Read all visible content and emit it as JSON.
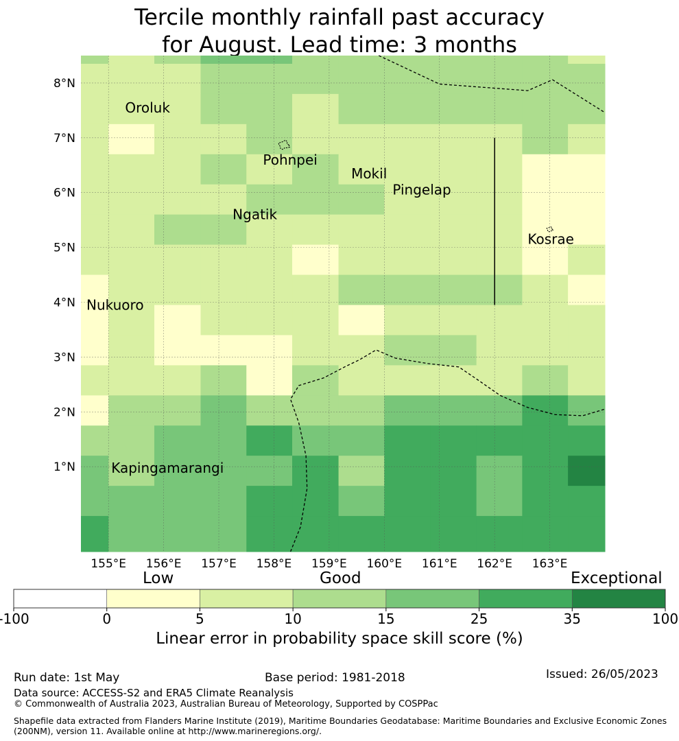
{
  "title": {
    "line1": "Tercile monthly rainfall past accuracy",
    "line2": "for August. Lead time: 3 months"
  },
  "map": {
    "lon_range": [
      154.5,
      164.0
    ],
    "lat_range": [
      -0.55,
      8.5
    ],
    "lon_ticks": [
      "155°E",
      "156°E",
      "157°E",
      "158°E",
      "159°E",
      "160°E",
      "161°E",
      "162°E",
      "163°E"
    ],
    "lat_ticks": [
      "1°N",
      "2°N",
      "3°N",
      "4°N",
      "5°N",
      "6°N",
      "7°N",
      "8°N"
    ],
    "grid": true,
    "place_labels": [
      "Oroluk",
      "Pohnpei",
      "Mokil",
      "Pingelap",
      "Ngatik",
      "Kosrae",
      "Nukuoro",
      "Kapingamarangi"
    ],
    "eez_boundary_style": "dashed",
    "skill_grid": {
      "row_lat_bottoms": [
        8.35,
        7.8,
        7.25,
        6.7,
        6.15,
        5.6,
        5.05,
        4.5,
        3.95,
        3.4,
        2.85,
        2.3,
        1.75,
        1.2,
        0.65,
        0.1,
        -0.45
      ],
      "column_lon_lefts": [
        154.5,
        155.0,
        155.83,
        156.67,
        157.5,
        158.33,
        159.17,
        160.0,
        160.83,
        161.67,
        162.5,
        163.33
      ],
      "values": [
        [
          12,
          8,
          12,
          18,
          18,
          12,
          12,
          12,
          12,
          12,
          12,
          8
        ],
        [
          8,
          8,
          8,
          12,
          12,
          12,
          12,
          12,
          12,
          12,
          12,
          12
        ],
        [
          8,
          8,
          8,
          12,
          12,
          8,
          12,
          12,
          12,
          12,
          12,
          12
        ],
        [
          8,
          3,
          8,
          8,
          12,
          8,
          8,
          8,
          8,
          8,
          12,
          8
        ],
        [
          8,
          8,
          8,
          12,
          8,
          12,
          8,
          8,
          8,
          8,
          3,
          3
        ],
        [
          8,
          8,
          8,
          8,
          12,
          12,
          12,
          8,
          8,
          8,
          3,
          3
        ],
        [
          8,
          8,
          12,
          12,
          8,
          8,
          8,
          8,
          8,
          8,
          3,
          3
        ],
        [
          8,
          8,
          8,
          8,
          8,
          3,
          8,
          8,
          8,
          8,
          3,
          8
        ],
        [
          3,
          8,
          8,
          8,
          8,
          8,
          12,
          12,
          12,
          12,
          8,
          3
        ],
        [
          3,
          8,
          3,
          8,
          8,
          8,
          3,
          8,
          8,
          8,
          8,
          8
        ],
        [
          3,
          8,
          3,
          3,
          3,
          8,
          8,
          12,
          12,
          8,
          8,
          8
        ],
        [
          8,
          8,
          8,
          12,
          3,
          12,
          8,
          8,
          8,
          8,
          12,
          8
        ],
        [
          3,
          12,
          12,
          18,
          12,
          12,
          12,
          18,
          18,
          18,
          30,
          18
        ],
        [
          12,
          12,
          18,
          18,
          30,
          18,
          18,
          30,
          30,
          30,
          30,
          30
        ],
        [
          18,
          12,
          18,
          18,
          18,
          30,
          12,
          30,
          30,
          18,
          30,
          40
        ],
        [
          18,
          18,
          18,
          18,
          30,
          30,
          18,
          30,
          30,
          18,
          30,
          30
        ],
        [
          30,
          18,
          18,
          18,
          30,
          30,
          30,
          30,
          30,
          30,
          30,
          30
        ]
      ]
    }
  },
  "colorbar": {
    "bins": [
      -100,
      0,
      5,
      10,
      15,
      25,
      35,
      100
    ],
    "tick_labels": [
      "-100",
      "0",
      "5",
      "10",
      "15",
      "25",
      "35",
      "100"
    ],
    "colors": [
      "#ffffff",
      "#ffffcc",
      "#d9f0a3",
      "#addd8e",
      "#78c679",
      "#41ab5d",
      "#238443"
    ],
    "categories": [
      "Low",
      "Good",
      "Exceptional"
    ],
    "title": "Linear error in probability space skill score (%)"
  },
  "footer": {
    "run_date": "Run date: 1st May",
    "base_period": "Base period: 1981-2018",
    "issued": "Issued: 26/05/2023",
    "data_source": "Data source: ACCESS-S2 and ERA5 Climate Reanalysis",
    "copyright": "© Commonwealth of Australia 2023, Australian Bureau of Meteorology, Supported by COSPPac",
    "shapefile": "Shapefile data extracted from Flanders Marine Institute (2019), Maritime Boundaries Geodatabase: Maritime Boundaries and Exclusive Economic Zones (200NM), version 11. Available online at http://www.marineregions.org/."
  }
}
